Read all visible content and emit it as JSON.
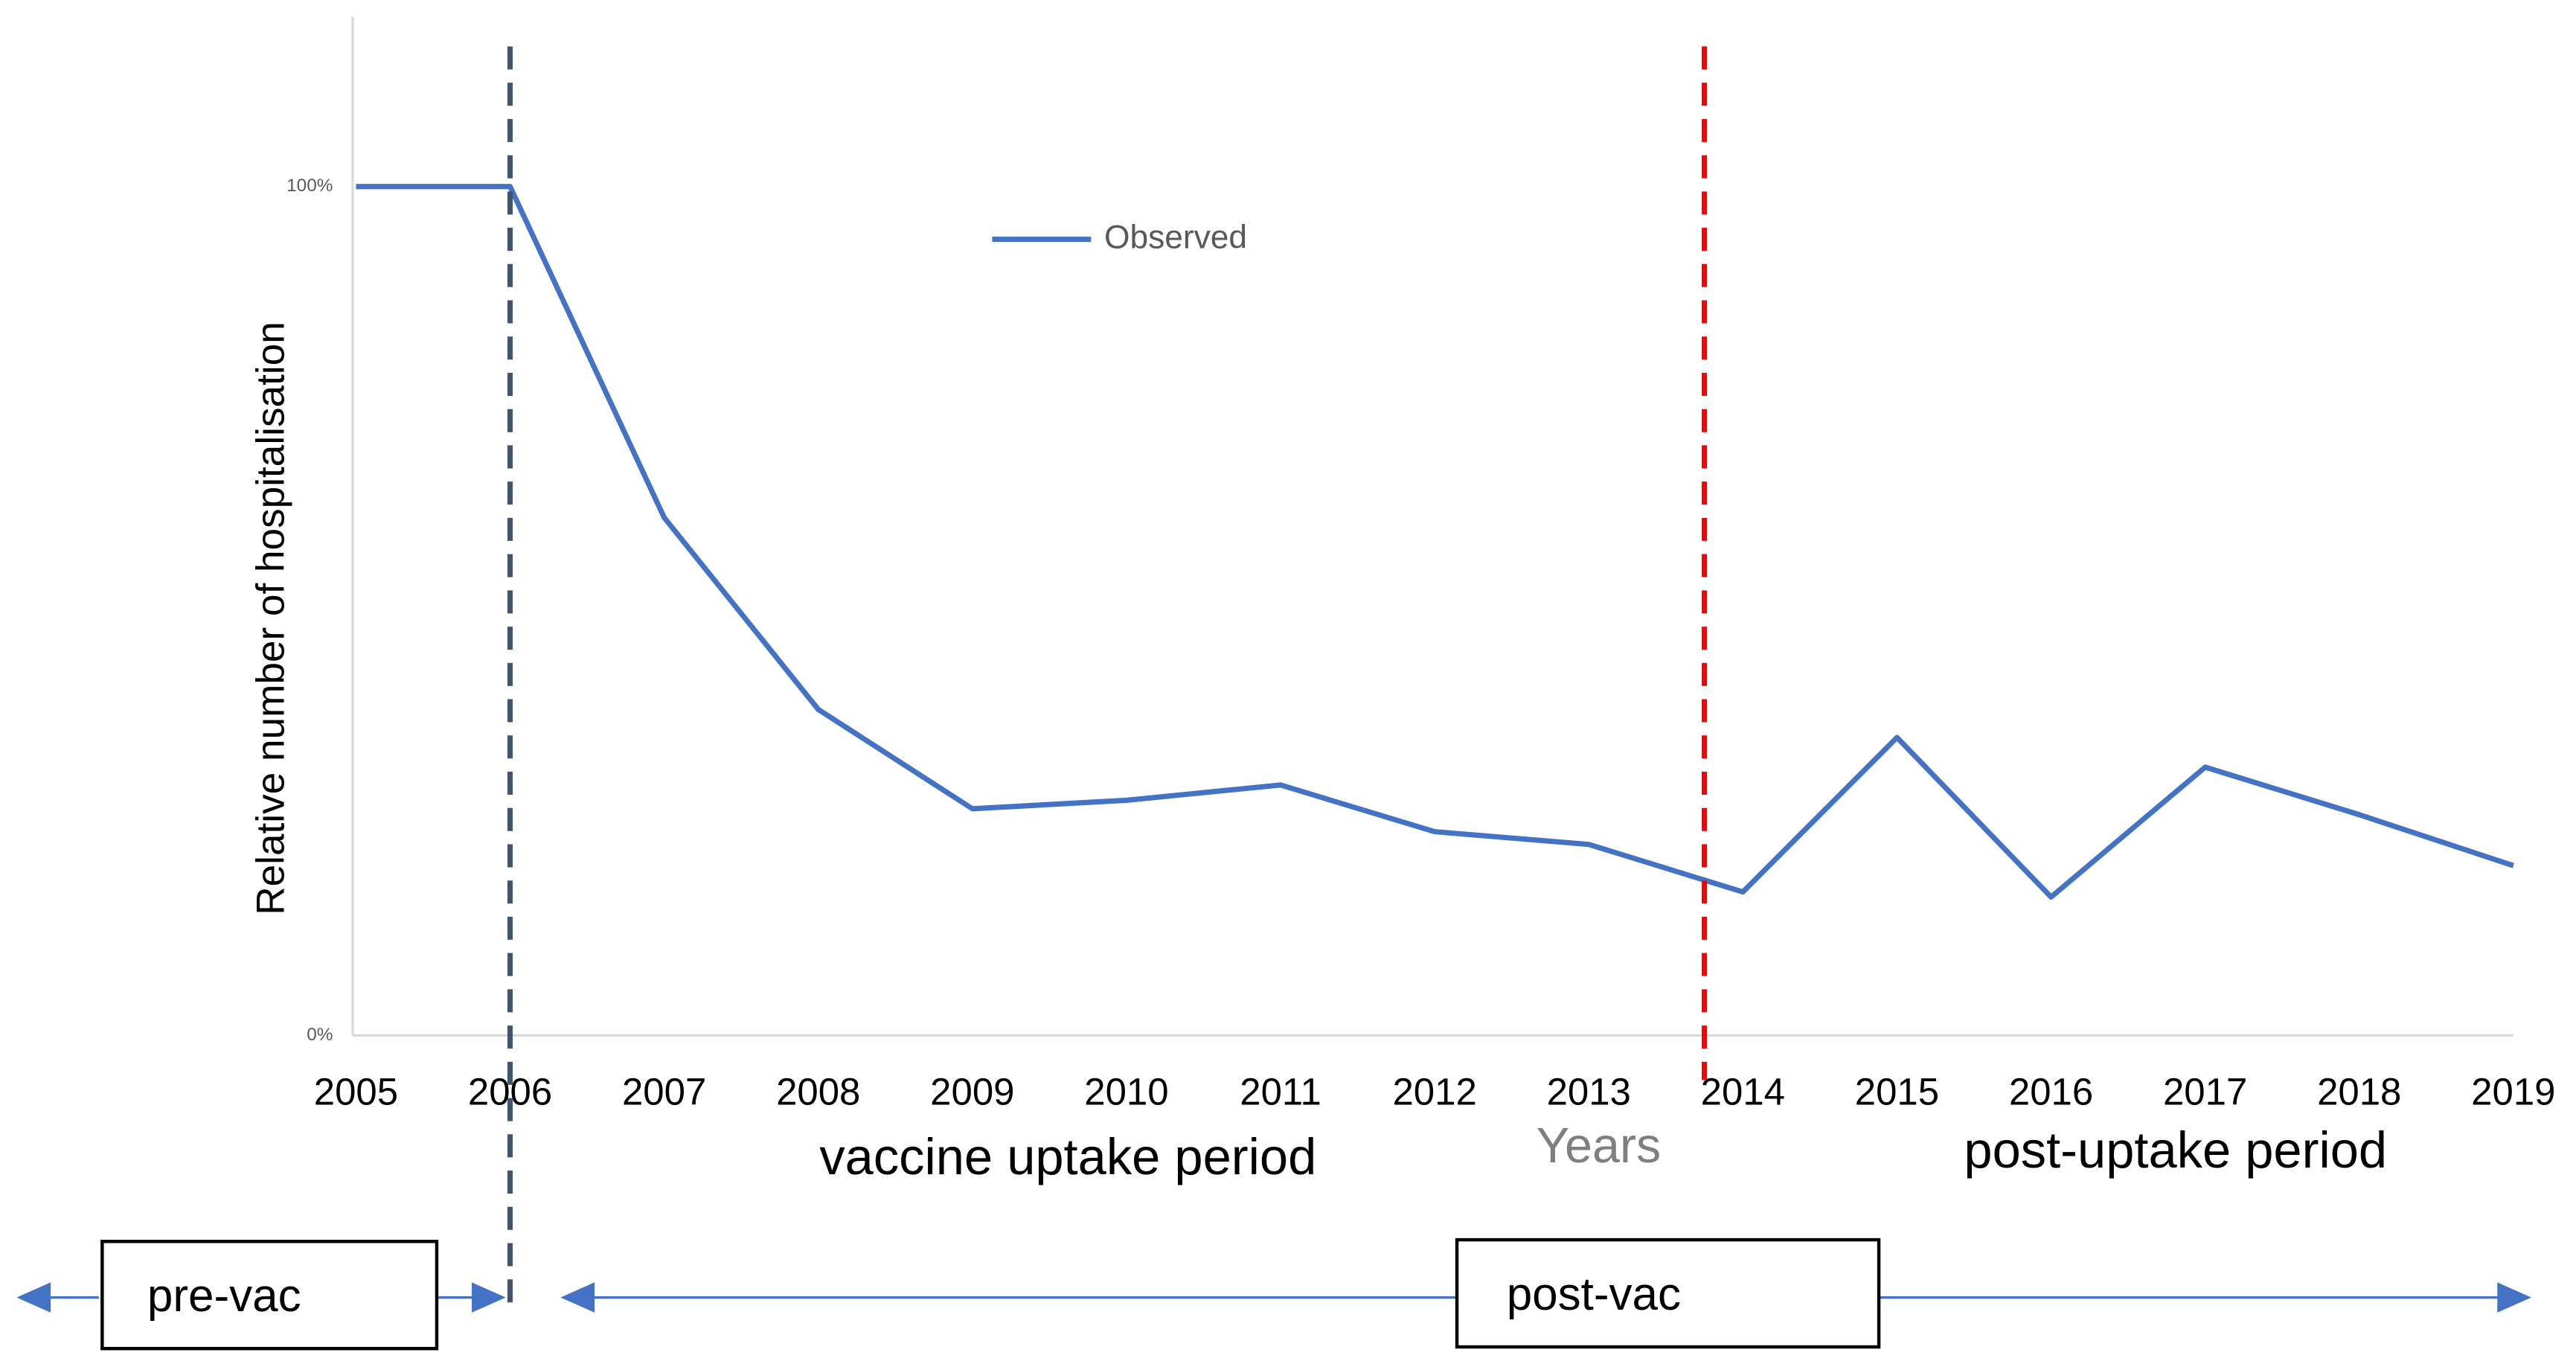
{
  "chart_data": {
    "type": "line",
    "y_label": "Relative number of hospitalisation",
    "x_label": "Years",
    "x": [
      2005,
      2006,
      2007,
      2008,
      2009,
      2010,
      2011,
      2012,
      2013,
      2014,
      2015,
      2016,
      2017,
      2018,
      2019
    ],
    "xlim": [
      2005,
      2019
    ],
    "xticks": [
      2005,
      2006,
      2007,
      2008,
      2009,
      2010,
      2011,
      2012,
      2013,
      2014,
      2015,
      2016,
      2017,
      2018,
      2019
    ],
    "ylim": [
      0,
      120
    ],
    "yticks": [
      {
        "value": 0,
        "label": "0%"
      },
      {
        "value": 100,
        "label": "100%"
      }
    ],
    "series": [
      {
        "name": "Observed",
        "color": "#4472c4",
        "values": [
          100,
          100,
          61,
          38.4,
          26.7,
          27.7,
          29.5,
          24,
          22.5,
          16.9,
          35.1,
          16.3,
          31.6,
          26,
          20
        ]
      }
    ],
    "vlines": [
      {
        "x": 2006,
        "color": "#44546a"
      },
      {
        "x": 2013.75,
        "color": "#ff0000"
      }
    ],
    "annotations": [
      "vaccine uptake period",
      "post-uptake period",
      "pre-vac",
      "post-vac"
    ]
  }
}
